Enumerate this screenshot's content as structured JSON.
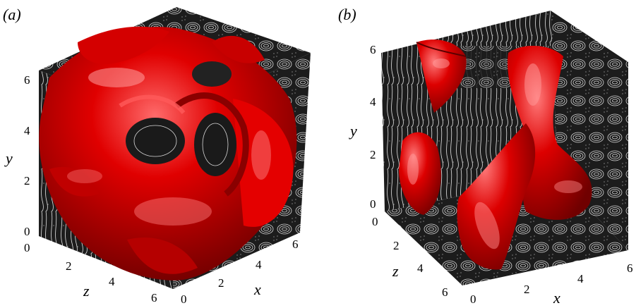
{
  "panels": [
    {
      "label": "(a)",
      "y_axis": {
        "label": "y",
        "ticks": [
          "0",
          "2",
          "4",
          "6"
        ]
      },
      "z_axis": {
        "label": "z",
        "ticks": [
          "0",
          "2",
          "4",
          "6"
        ]
      },
      "x_axis": {
        "label": "x",
        "ticks": [
          "0",
          "2",
          "4",
          "6"
        ]
      }
    },
    {
      "label": "(b)",
      "y_axis": {
        "label": "y",
        "ticks": [
          "0",
          "2",
          "4",
          "6"
        ]
      },
      "z_axis": {
        "label": "z",
        "ticks": [
          "0",
          "2",
          "4",
          "6"
        ]
      },
      "x_axis": {
        "label": "x",
        "ticks": [
          "0",
          "2",
          "4",
          "6"
        ]
      }
    }
  ],
  "colors": {
    "isosurface": "#e00000",
    "isosurface_dark": "#7a0000",
    "isosurface_highlight": "#ff8a8a",
    "slice_background": "#1a1a1a",
    "streamline": "#e8e8e8"
  }
}
